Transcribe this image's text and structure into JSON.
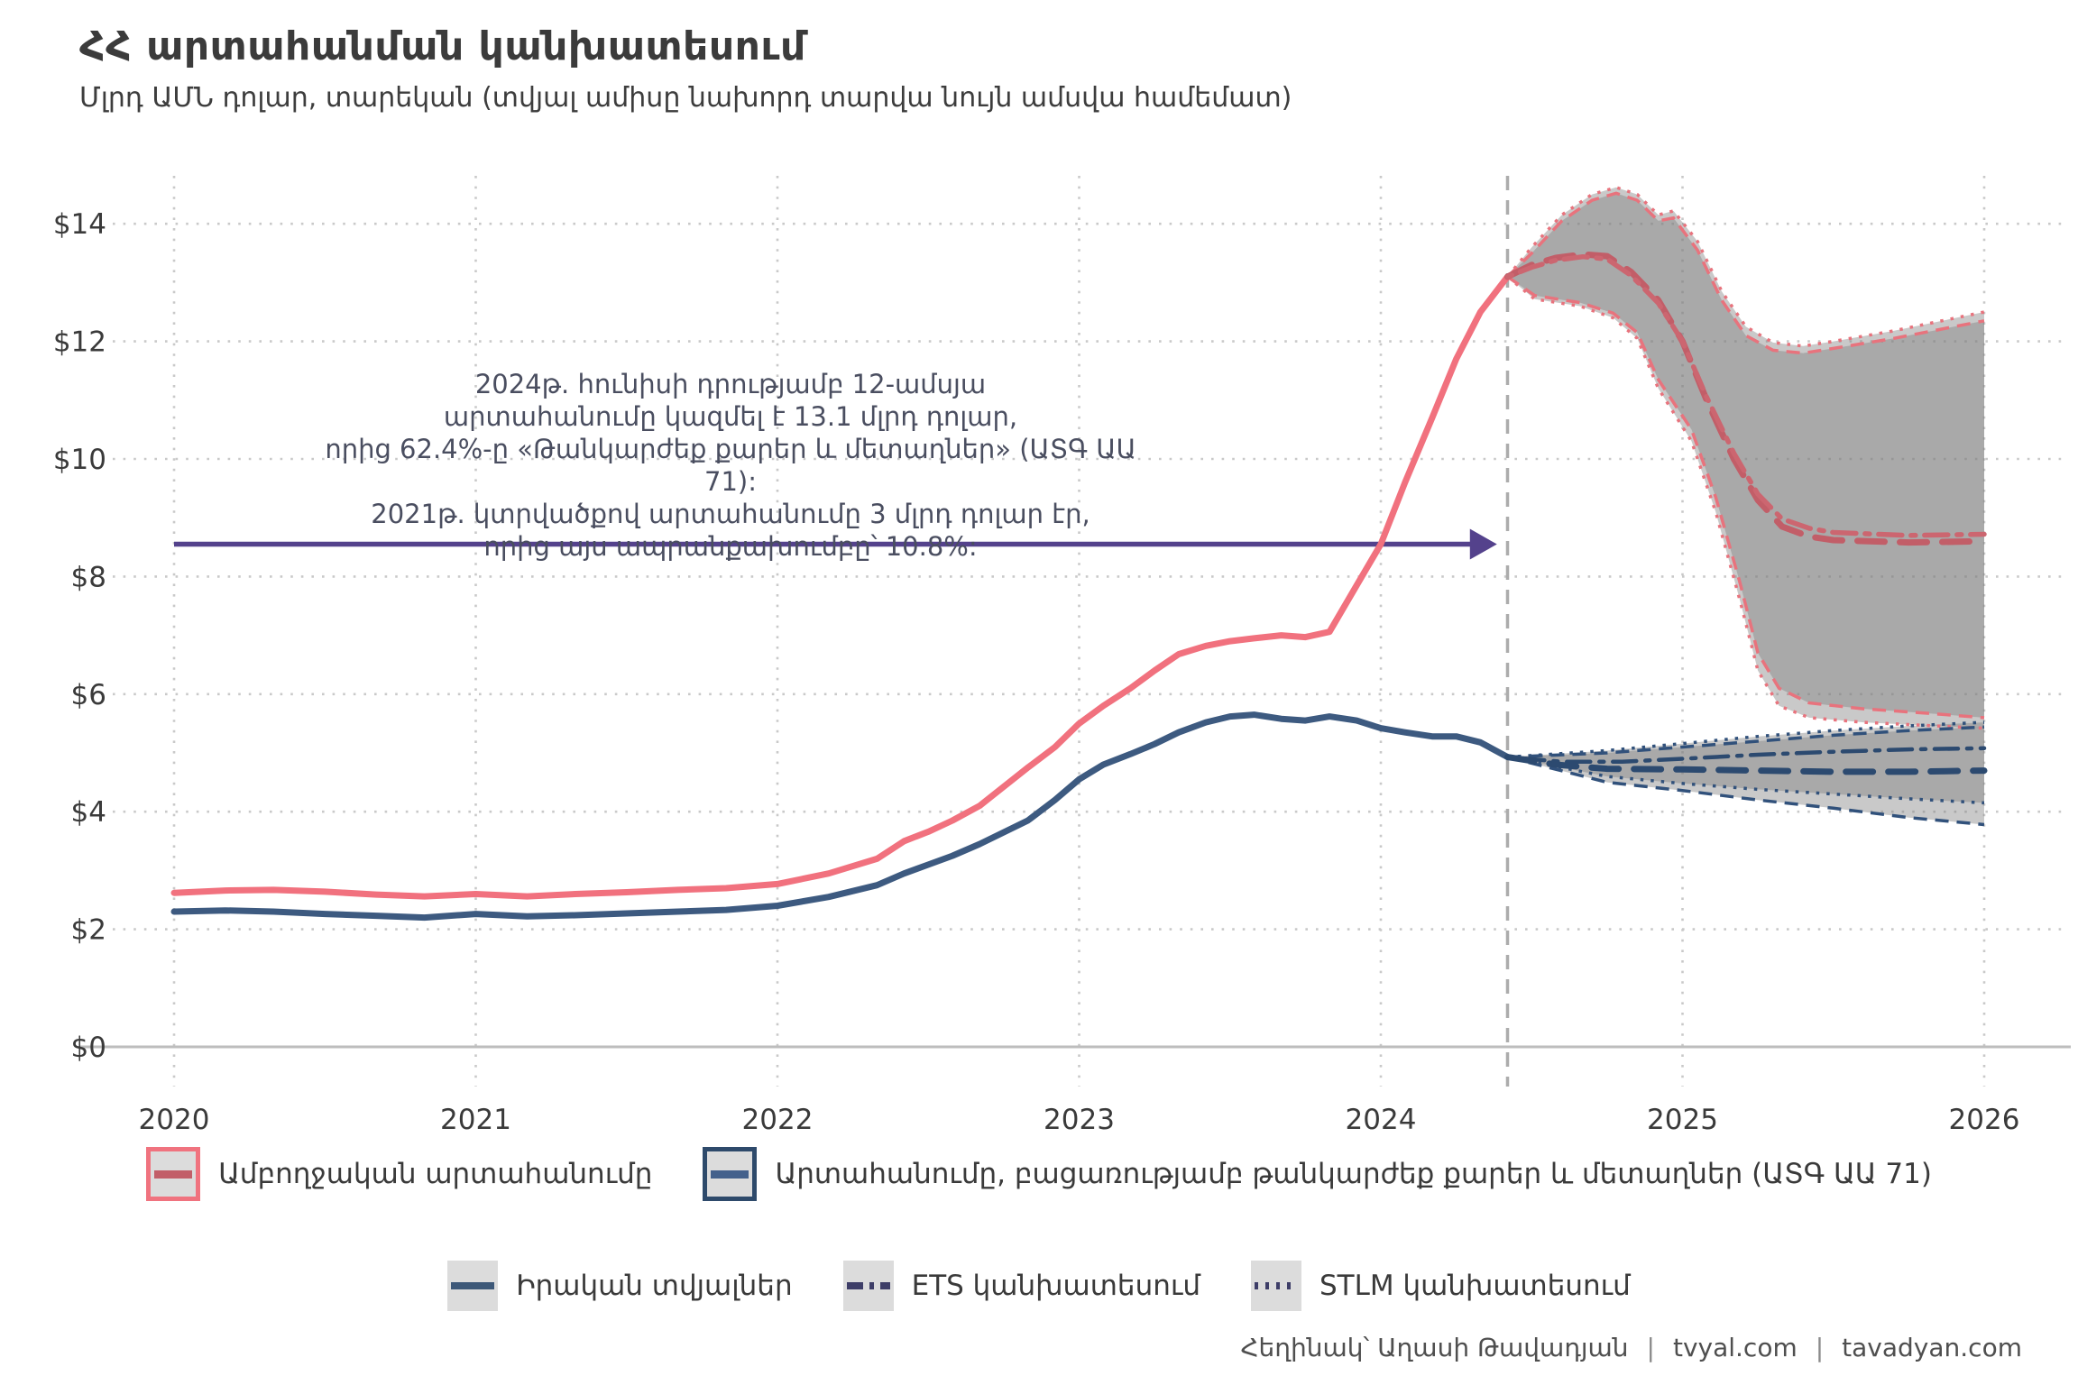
{
  "header": {
    "title": "ՀՀ արտահանման կանխատեսում",
    "subtitle": "Մլրդ ԱՄՆ դոլար, տարեկան (տվյալ ամիսը նախորդ տարվա նույն ամսվա համեմատ)"
  },
  "annotation": {
    "lines": [
      "2024թ. հունիսի դրությամբ 12-ամսյա",
      "արտահանումը կազմել է 13.1 մլրդ դոլար,",
      "որից 62.4%-ը «Թանկարժեք քարեր և մետաղներ» (ԱՏԳ ԱԱ 71):",
      "2021թ. կտրվածքով արտահանումը 3 մլրդ դոլար էր,",
      "որից այս ապրանքախումբը՝ 10.8%:"
    ]
  },
  "legend": {
    "row1": [
      {
        "label": "Ամբողջական արտահանումը",
        "border_color": "#f0737f",
        "line_color": "#c25e68"
      },
      {
        "label": "Արտահանումը, բացառությամբ թանկարժեք քարեր և մետաղներ (ԱՏԳ ԱԱ 71)",
        "border_color": "#2e4a6b",
        "line_color": "#44618c"
      }
    ],
    "row2": [
      {
        "label": "Իրական տվյալներ",
        "style": "solid",
        "color": "#3d5878"
      },
      {
        "label": "ETS կանխատեսում",
        "style": "ets",
        "color": "#3e3e68"
      },
      {
        "label": "STLM կանխատեսում",
        "style": "stlm",
        "color": "#3e3e68"
      }
    ]
  },
  "footer": {
    "author": "Հեղինակ՝ Աղասի Թավադյան",
    "separator": "|",
    "link1": "tvyal.com",
    "link2": "tavadyan.com"
  },
  "chart_data": {
    "type": "line",
    "title": "ՀՀ արտահանման կանխատեսում",
    "xlabel": "",
    "ylabel": "Մլրդ ԱՄՆ դոլար",
    "x_ticks": [
      2020,
      2021,
      2022,
      2023,
      2024,
      2025,
      2026
    ],
    "y_ticks": [
      {
        "v": 0,
        "label": "$0"
      },
      {
        "v": 2,
        "label": "$2"
      },
      {
        "v": 4,
        "label": "$4"
      },
      {
        "v": 6,
        "label": "$6"
      },
      {
        "v": 8,
        "label": "$8"
      },
      {
        "v": 10,
        "label": "$10"
      },
      {
        "v": 12,
        "label": "$12"
      },
      {
        "v": 14,
        "label": "$14"
      }
    ],
    "ylim": [
      0,
      15.2
    ],
    "xlim": [
      2019.8,
      2026.3
    ],
    "grid": true,
    "legend_position": "bottom",
    "forecast_start_x": 2024.42,
    "colors": {
      "total_actual": "#f1717e",
      "total_ets": "#c25e68",
      "total_stlm": "#cc6670",
      "total_band_edge": "#e8737d",
      "ex71_actual": "#3d5a80",
      "ex71_ets": "#2c4a70",
      "ex71_stlm": "#2c4a70",
      "ex71_band_edge": "#31517b",
      "band_fill": "rgba(127,127,127,0.42)",
      "grid": "#c9c9c9",
      "axis": "#bdbdbd",
      "vline": "#acacac",
      "arrow": "#54428c",
      "tick_text": "#3a3a3a"
    },
    "arrow": {
      "x1": 2020.0,
      "x2": 2024.385,
      "y": 8.55
    },
    "series": [
      {
        "name": "total-exports-actual",
        "style": "solid",
        "width": 7,
        "color_key": "total_actual",
        "points": [
          [
            2020.0,
            2.62
          ],
          [
            2020.17,
            2.66
          ],
          [
            2020.33,
            2.67
          ],
          [
            2020.5,
            2.64
          ],
          [
            2020.67,
            2.59
          ],
          [
            2020.83,
            2.56
          ],
          [
            2021.0,
            2.6
          ],
          [
            2021.17,
            2.56
          ],
          [
            2021.33,
            2.6
          ],
          [
            2021.5,
            2.63
          ],
          [
            2021.67,
            2.67
          ],
          [
            2021.83,
            2.7
          ],
          [
            2022.0,
            2.77
          ],
          [
            2022.17,
            2.95
          ],
          [
            2022.33,
            3.2
          ],
          [
            2022.42,
            3.5
          ],
          [
            2022.5,
            3.66
          ],
          [
            2022.58,
            3.85
          ],
          [
            2022.67,
            4.1
          ],
          [
            2022.83,
            4.75
          ],
          [
            2022.92,
            5.1
          ],
          [
            2023.0,
            5.5
          ],
          [
            2023.08,
            5.8
          ],
          [
            2023.17,
            6.1
          ],
          [
            2023.25,
            6.4
          ],
          [
            2023.33,
            6.68
          ],
          [
            2023.42,
            6.82
          ],
          [
            2023.5,
            6.9
          ],
          [
            2023.58,
            6.95
          ],
          [
            2023.67,
            7.0
          ],
          [
            2023.75,
            6.97
          ],
          [
            2023.83,
            7.06
          ],
          [
            2023.92,
            7.85
          ],
          [
            2024.0,
            8.55
          ],
          [
            2024.08,
            9.6
          ],
          [
            2024.17,
            10.7
          ],
          [
            2024.25,
            11.7
          ],
          [
            2024.33,
            12.5
          ],
          [
            2024.42,
            13.1
          ]
        ]
      },
      {
        "name": "total-exports-ets-forecast",
        "style": "dashed",
        "width": 7,
        "color_key": "total_ets",
        "points": [
          [
            2024.42,
            13.1
          ],
          [
            2024.5,
            13.3
          ],
          [
            2024.58,
            13.42
          ],
          [
            2024.67,
            13.48
          ],
          [
            2024.75,
            13.45
          ],
          [
            2024.83,
            13.18
          ],
          [
            2024.92,
            12.7
          ],
          [
            2025.0,
            12.0
          ],
          [
            2025.08,
            11.0
          ],
          [
            2025.17,
            10.0
          ],
          [
            2025.25,
            9.3
          ],
          [
            2025.33,
            8.85
          ],
          [
            2025.42,
            8.68
          ],
          [
            2025.5,
            8.62
          ],
          [
            2025.75,
            8.58
          ],
          [
            2026.0,
            8.6
          ]
        ]
      },
      {
        "name": "total-exports-stlm-forecast",
        "style": "dotdash",
        "width": 5.5,
        "color_key": "total_stlm",
        "points": [
          [
            2024.42,
            13.1
          ],
          [
            2024.5,
            13.26
          ],
          [
            2024.58,
            13.38
          ],
          [
            2024.67,
            13.44
          ],
          [
            2024.75,
            13.4
          ],
          [
            2024.83,
            13.12
          ],
          [
            2024.92,
            12.65
          ],
          [
            2025.0,
            12.0
          ],
          [
            2025.08,
            11.05
          ],
          [
            2025.17,
            10.1
          ],
          [
            2025.25,
            9.4
          ],
          [
            2025.33,
            8.98
          ],
          [
            2025.42,
            8.82
          ],
          [
            2025.5,
            8.75
          ],
          [
            2025.75,
            8.7
          ],
          [
            2026.0,
            8.72
          ]
        ]
      },
      {
        "name": "ex71-exports-actual",
        "style": "solid",
        "width": 7,
        "color_key": "ex71_actual",
        "points": [
          [
            2020.0,
            2.3
          ],
          [
            2020.17,
            2.32
          ],
          [
            2020.33,
            2.3
          ],
          [
            2020.5,
            2.26
          ],
          [
            2020.67,
            2.23
          ],
          [
            2020.83,
            2.2
          ],
          [
            2021.0,
            2.26
          ],
          [
            2021.17,
            2.22
          ],
          [
            2021.33,
            2.24
          ],
          [
            2021.5,
            2.27
          ],
          [
            2021.67,
            2.3
          ],
          [
            2021.83,
            2.33
          ],
          [
            2022.0,
            2.4
          ],
          [
            2022.17,
            2.55
          ],
          [
            2022.33,
            2.75
          ],
          [
            2022.42,
            2.95
          ],
          [
            2022.5,
            3.1
          ],
          [
            2022.58,
            3.25
          ],
          [
            2022.67,
            3.45
          ],
          [
            2022.83,
            3.85
          ],
          [
            2022.92,
            4.2
          ],
          [
            2023.0,
            4.55
          ],
          [
            2023.08,
            4.8
          ],
          [
            2023.17,
            4.98
          ],
          [
            2023.25,
            5.15
          ],
          [
            2023.33,
            5.35
          ],
          [
            2023.42,
            5.52
          ],
          [
            2023.5,
            5.62
          ],
          [
            2023.58,
            5.65
          ],
          [
            2023.67,
            5.58
          ],
          [
            2023.75,
            5.55
          ],
          [
            2023.83,
            5.62
          ],
          [
            2023.92,
            5.55
          ],
          [
            2024.0,
            5.42
          ],
          [
            2024.08,
            5.35
          ],
          [
            2024.17,
            5.28
          ],
          [
            2024.25,
            5.28
          ],
          [
            2024.33,
            5.18
          ],
          [
            2024.42,
            4.93
          ]
        ]
      },
      {
        "name": "ex71-exports-ets-forecast",
        "style": "dashed",
        "width": 7,
        "color_key": "ex71_ets",
        "points": [
          [
            2024.42,
            4.93
          ],
          [
            2024.58,
            4.8
          ],
          [
            2024.75,
            4.73
          ],
          [
            2025.0,
            4.72
          ],
          [
            2025.25,
            4.7
          ],
          [
            2025.5,
            4.68
          ],
          [
            2025.75,
            4.68
          ],
          [
            2026.0,
            4.7
          ]
        ]
      },
      {
        "name": "ex71-exports-stlm-forecast",
        "style": "dotdash",
        "width": 4.5,
        "color_key": "ex71_stlm",
        "points": [
          [
            2024.42,
            4.93
          ],
          [
            2024.6,
            4.85
          ],
          [
            2024.8,
            4.85
          ],
          [
            2025.0,
            4.9
          ],
          [
            2025.25,
            4.97
          ],
          [
            2025.5,
            5.02
          ],
          [
            2025.75,
            5.06
          ],
          [
            2026.0,
            5.08
          ]
        ]
      }
    ],
    "bands": [
      {
        "name": "total-stlm-band",
        "edge_style": "dotted",
        "edge_color_key": "total_band_edge",
        "upper": [
          [
            2024.42,
            13.1
          ],
          [
            2024.5,
            13.6
          ],
          [
            2024.6,
            14.15
          ],
          [
            2024.7,
            14.5
          ],
          [
            2024.78,
            14.62
          ],
          [
            2024.85,
            14.5
          ],
          [
            2024.92,
            14.15
          ],
          [
            2024.97,
            14.22
          ],
          [
            2025.05,
            13.7
          ],
          [
            2025.13,
            12.85
          ],
          [
            2025.21,
            12.25
          ],
          [
            2025.3,
            11.98
          ],
          [
            2025.4,
            11.92
          ],
          [
            2025.5,
            12.0
          ],
          [
            2025.7,
            12.18
          ],
          [
            2026.0,
            12.5
          ]
        ],
        "lower": [
          [
            2024.42,
            13.1
          ],
          [
            2024.51,
            12.72
          ],
          [
            2024.66,
            12.6
          ],
          [
            2024.77,
            12.4
          ],
          [
            2024.85,
            12.05
          ],
          [
            2024.92,
            11.2
          ],
          [
            2025.03,
            10.3
          ],
          [
            2025.11,
            9.1
          ],
          [
            2025.19,
            7.6
          ],
          [
            2025.25,
            6.4
          ],
          [
            2025.32,
            5.8
          ],
          [
            2025.42,
            5.6
          ],
          [
            2025.6,
            5.52
          ],
          [
            2025.8,
            5.47
          ],
          [
            2026.0,
            5.42
          ]
        ]
      },
      {
        "name": "total-ets-band",
        "edge_style": "dashed",
        "edge_color_key": "total_band_edge",
        "upper": [
          [
            2024.42,
            13.1
          ],
          [
            2024.5,
            13.5
          ],
          [
            2024.6,
            14.05
          ],
          [
            2024.7,
            14.4
          ],
          [
            2024.78,
            14.52
          ],
          [
            2024.85,
            14.4
          ],
          [
            2024.92,
            14.05
          ],
          [
            2024.97,
            14.1
          ],
          [
            2025.05,
            13.55
          ],
          [
            2025.13,
            12.7
          ],
          [
            2025.21,
            12.1
          ],
          [
            2025.3,
            11.85
          ],
          [
            2025.4,
            11.8
          ],
          [
            2025.5,
            11.88
          ],
          [
            2025.7,
            12.05
          ],
          [
            2026.0,
            12.35
          ]
        ],
        "lower": [
          [
            2024.42,
            13.1
          ],
          [
            2024.51,
            12.78
          ],
          [
            2024.66,
            12.66
          ],
          [
            2024.77,
            12.48
          ],
          [
            2024.85,
            12.15
          ],
          [
            2024.92,
            11.35
          ],
          [
            2025.03,
            10.5
          ],
          [
            2025.11,
            9.35
          ],
          [
            2025.19,
            7.9
          ],
          [
            2025.25,
            6.7
          ],
          [
            2025.32,
            6.1
          ],
          [
            2025.42,
            5.85
          ],
          [
            2025.6,
            5.75
          ],
          [
            2025.8,
            5.68
          ],
          [
            2026.0,
            5.6
          ]
        ]
      },
      {
        "name": "ex71-stlm-band",
        "edge_style": "dotted",
        "edge_color_key": "ex71_band_edge",
        "upper": [
          [
            2024.42,
            4.93
          ],
          [
            2024.75,
            5.04
          ],
          [
            2025.0,
            5.16
          ],
          [
            2025.25,
            5.28
          ],
          [
            2025.5,
            5.38
          ],
          [
            2025.75,
            5.46
          ],
          [
            2026.0,
            5.52
          ]
        ],
        "lower": [
          [
            2024.42,
            4.93
          ],
          [
            2024.75,
            4.6
          ],
          [
            2025.0,
            4.48
          ],
          [
            2025.25,
            4.38
          ],
          [
            2025.5,
            4.3
          ],
          [
            2025.75,
            4.22
          ],
          [
            2026.0,
            4.15
          ]
        ]
      },
      {
        "name": "ex71-ets-band",
        "edge_style": "dashed",
        "edge_color_key": "ex71_band_edge",
        "upper": [
          [
            2024.42,
            4.93
          ],
          [
            2024.75,
            5.0
          ],
          [
            2025.0,
            5.1
          ],
          [
            2025.25,
            5.2
          ],
          [
            2025.5,
            5.3
          ],
          [
            2025.75,
            5.38
          ],
          [
            2026.0,
            5.44
          ]
        ],
        "lower": [
          [
            2024.42,
            4.93
          ],
          [
            2024.75,
            4.5
          ],
          [
            2025.0,
            4.36
          ],
          [
            2025.25,
            4.2
          ],
          [
            2025.5,
            4.06
          ],
          [
            2025.75,
            3.9
          ],
          [
            2026.0,
            3.78
          ]
        ]
      }
    ]
  }
}
